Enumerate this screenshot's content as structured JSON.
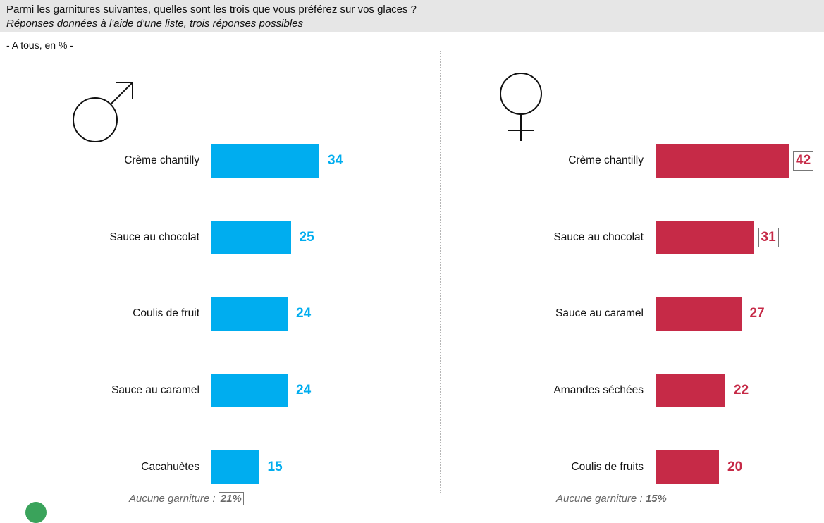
{
  "question": {
    "line1": "Parmi les garnitures suivantes, quelles sont les trois que vous préférez sur vos glaces ?",
    "line2": "Réponses données à l'aide d'une liste, trois réponses possibles"
  },
  "base": "- A tous, en % -",
  "colors": {
    "men": "#00adef",
    "women": "#c62a47",
    "header_bg": "#e6e6e6"
  },
  "icons": {
    "men": "male-symbol-icon",
    "women": "female-symbol-icon"
  },
  "chart_data": [
    {
      "type": "bar",
      "orientation": "horizontal",
      "categories": [
        "Crème chantilly",
        "Sauce au chocolat",
        "Coulis de fruit",
        "Sauce au caramel",
        "Cacahuètes"
      ],
      "values": [
        34,
        25,
        24,
        24,
        15
      ],
      "value_labels": [
        "34",
        "25",
        "24",
        "24",
        "15"
      ],
      "boxed": [
        false,
        false,
        false,
        false,
        false
      ],
      "footnote": {
        "label": "Aucune garniture :",
        "value": "21%",
        "boxed": true
      }
    },
    {
      "type": "bar",
      "orientation": "horizontal",
      "categories": [
        "Crème chantilly",
        "Sauce au chocolat",
        "Sauce au caramel",
        "Amandes séchées",
        "Coulis de fruits"
      ],
      "values": [
        42,
        31,
        27,
        22,
        20
      ],
      "value_labels": [
        "42",
        "31",
        "27",
        "22",
        "20"
      ],
      "boxed": [
        true,
        true,
        false,
        false,
        false
      ],
      "footnote": {
        "label": "Aucune garniture :",
        "value": "15%",
        "boxed": false
      }
    }
  ]
}
